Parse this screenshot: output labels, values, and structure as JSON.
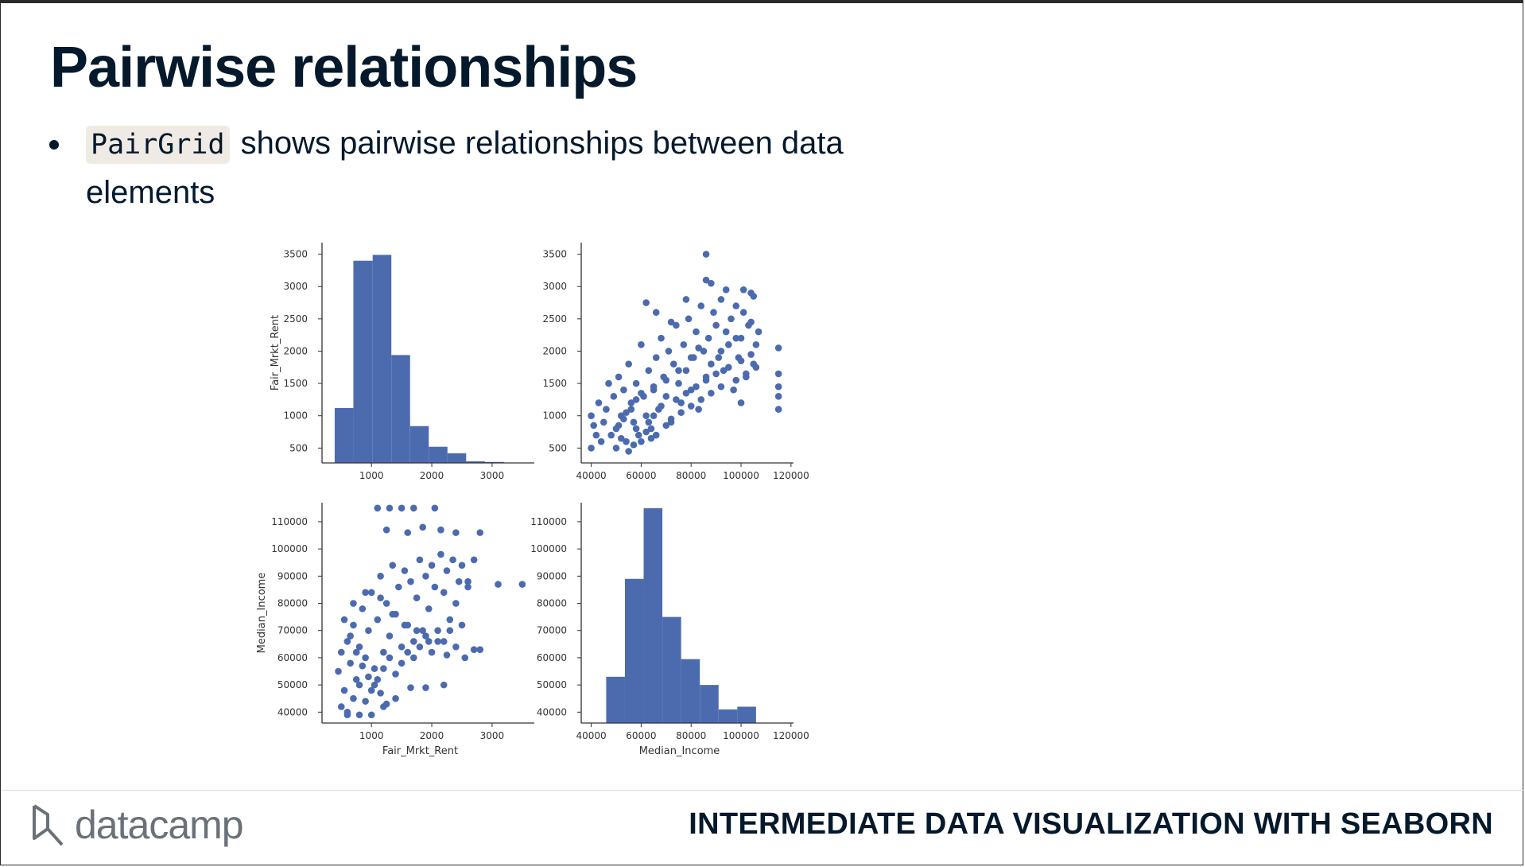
{
  "slide": {
    "title": "Pairwise relationships",
    "bullet": {
      "code": "PairGrid",
      "text": "shows pairwise relationships between data elements"
    }
  },
  "footer": {
    "logo_text": "datacamp",
    "course_title": "INTERMEDIATE DATA VISUALIZATION WITH SEABORN"
  },
  "colors": {
    "mark": "#4c6baf",
    "axis": "#333333",
    "text": "#05192d"
  },
  "chart_data": [
    {
      "type": "bar",
      "panel": "Fair_Mrkt_Rent vs Fair_Mrkt_Rent (histogram)",
      "xlabel": "",
      "ylabel": "Fair_Mrkt_Rent",
      "xlim": [
        180,
        3700
      ],
      "ylim": [
        270,
        3680
      ],
      "xticks": [
        1000,
        2000,
        3000
      ],
      "yticks": [
        500,
        1000,
        1500,
        2000,
        2500,
        3000,
        3500
      ],
      "bins": [
        {
          "x0": 390,
          "x1": 700,
          "height": 1120
        },
        {
          "x0": 700,
          "x1": 1020,
          "height": 3400
        },
        {
          "x0": 1020,
          "x1": 1330,
          "height": 3490
        },
        {
          "x0": 1330,
          "x1": 1640,
          "height": 1940
        },
        {
          "x0": 1640,
          "x1": 1950,
          "height": 840
        },
        {
          "x0": 1950,
          "x1": 2260,
          "height": 520
        },
        {
          "x0": 2260,
          "x1": 2570,
          "height": 420
        },
        {
          "x0": 2570,
          "x1": 2880,
          "height": 295
        },
        {
          "x0": 2880,
          "x1": 3200,
          "height": 285
        }
      ]
    },
    {
      "type": "scatter",
      "panel": "Fair_Mrkt_Rent vs Median_Income",
      "xlabel": "",
      "ylabel": "",
      "xlim": [
        36000,
        121000
      ],
      "ylim": [
        270,
        3680
      ],
      "xticks": [
        40000,
        60000,
        80000,
        100000,
        120000
      ],
      "yticks": [
        500,
        1000,
        1500,
        2000,
        2500,
        3000,
        3500
      ],
      "x": [
        40000,
        40000,
        41000,
        42000,
        43000,
        44000,
        45000,
        46000,
        47000,
        48000,
        49000,
        50000,
        51000,
        52000,
        53000,
        54000,
        55000,
        56000,
        57000,
        58000,
        59000,
        60000,
        61000,
        62000,
        63000,
        64000,
        65000,
        66000,
        67000,
        68000,
        69000,
        70000,
        71000,
        72000,
        73000,
        74000,
        75000,
        76000,
        77000,
        78000,
        79000,
        80000,
        81000,
        82000,
        83000,
        84000,
        85000,
        86000,
        87000,
        88000,
        89000,
        90000,
        91000,
        92000,
        93000,
        94000,
        95000,
        96000,
        97000,
        98000,
        99000,
        100000,
        101000,
        102000,
        103000,
        104000,
        105000,
        106000,
        107000,
        50000,
        52000,
        55000,
        57000,
        58000,
        60000,
        62000,
        63000,
        64000,
        65000,
        66000,
        68000,
        70000,
        72000,
        74000,
        76000,
        78000,
        80000,
        82000,
        84000,
        86000,
        88000,
        90000,
        92000,
        95000,
        98000,
        100000,
        102000,
        104000,
        106000,
        115000,
        115000,
        115000,
        115000,
        115000,
        86000,
        86000,
        101000,
        105000,
        104000,
        98000,
        92000,
        80000,
        83000,
        75000,
        70000,
        65000,
        60000,
        58000,
        56000,
        54000,
        53000,
        51000,
        62000,
        66000,
        72000,
        78000,
        88000,
        94000,
        100000
      ],
      "y": [
        1000,
        500,
        850,
        700,
        1200,
        600,
        900,
        1100,
        1500,
        700,
        1300,
        800,
        1600,
        1000,
        1400,
        600,
        1800,
        1200,
        900,
        1500,
        700,
        2100,
        1300,
        1000,
        1700,
        800,
        1400,
        1900,
        1100,
        2200,
        1600,
        1300,
        2000,
        900,
        1800,
        2400,
        1500,
        1200,
        2100,
        1700,
        2500,
        1400,
        1900,
        2300,
        1100,
        2700,
        2000,
        1600,
        2200,
        1800,
        2600,
        2400,
        1900,
        2800,
        1700,
        2300,
        2100,
        2500,
        1400,
        2700,
        1900,
        2200,
        2600,
        1600,
        2400,
        2900,
        1800,
        2100,
        2300,
        500,
        650,
        450,
        550,
        800,
        600,
        750,
        900,
        650,
        1000,
        700,
        1150,
        850,
        950,
        1250,
        1050,
        1350,
        1150,
        1450,
        1250,
        1550,
        1350,
        1650,
        1450,
        1750,
        1550,
        1850,
        1650,
        1950,
        1750,
        2050,
        1650,
        1300,
        1100,
        1450,
        3500,
        3100,
        2950,
        2850,
        2450,
        2200,
        2000,
        1900,
        2050,
        1700,
        1550,
        1450,
        1350,
        1250,
        1100,
        1050,
        950,
        850,
        2750,
        2600,
        2450,
        2800,
        3050,
        2950,
        1200
      ]
    },
    {
      "type": "scatter",
      "panel": "Median_Income vs Fair_Mrkt_Rent",
      "xlabel": "Fair_Mrkt_Rent",
      "ylabel": "Median_Income",
      "xlim": [
        180,
        3700
      ],
      "ylim": [
        36000,
        117000
      ],
      "xticks": [
        1000,
        2000,
        3000
      ],
      "yticks": [
        40000,
        50000,
        60000,
        70000,
        80000,
        90000,
        100000,
        110000
      ],
      "x": [
        450,
        500,
        550,
        600,
        650,
        700,
        750,
        800,
        850,
        900,
        950,
        1000,
        1050,
        1100,
        1150,
        1200,
        1250,
        1300,
        1350,
        1400,
        1450,
        1500,
        1550,
        1600,
        1650,
        1700,
        1750,
        1800,
        1850,
        1900,
        1950,
        2000,
        2050,
        2100,
        2150,
        2200,
        2250,
        2300,
        2350,
        2400,
        2450,
        2500,
        2600,
        2700,
        500,
        600,
        700,
        800,
        900,
        1000,
        1100,
        1200,
        1300,
        1400,
        1500,
        1600,
        1700,
        1800,
        1900,
        2000,
        2100,
        2200,
        2300,
        2400,
        2500,
        2600,
        2700,
        2800,
        3100,
        3500,
        1100,
        1300,
        1500,
        1700,
        2050,
        1250,
        1600,
        1850,
        2150,
        2400,
        600,
        800,
        1000,
        1200,
        1400,
        1650,
        1900,
        2200,
        2800,
        550,
        700,
        900,
        1150,
        1350,
        1550,
        1750,
        1950,
        2250,
        2550,
        650,
        750,
        850,
        950,
        1050,
        1150,
        1250
      ],
      "y": [
        55000,
        62000,
        48000,
        66000,
        58000,
        72000,
        52000,
        64000,
        78000,
        60000,
        70000,
        84000,
        56000,
        74000,
        90000,
        62000,
        80000,
        68000,
        94000,
        76000,
        86000,
        64000,
        92000,
        72000,
        88000,
        60000,
        82000,
        96000,
        70000,
        90000,
        78000,
        94000,
        86000,
        66000,
        98000,
        84000,
        92000,
        70000,
        96000,
        80000,
        88000,
        94000,
        86000,
        63000,
        42000,
        40000,
        45000,
        50000,
        44000,
        48000,
        52000,
        56000,
        60000,
        54000,
        58000,
        62000,
        66000,
        64000,
        68000,
        62000,
        70000,
        66000,
        74000,
        64000,
        72000,
        88000,
        96000,
        106000,
        87000,
        87000,
        115000,
        115000,
        115000,
        115000,
        115000,
        107000,
        106000,
        108000,
        107000,
        106000,
        39000,
        39000,
        39000,
        42000,
        45000,
        49000,
        49000,
        50000,
        63000,
        74000,
        80000,
        84000,
        82000,
        76000,
        72000,
        70000,
        66000,
        61000,
        60000,
        68000,
        62000,
        57000,
        53000,
        50000,
        47000,
        43000
      ]
    },
    {
      "type": "bar",
      "panel": "Median_Income vs Median_Income (histogram)",
      "xlabel": "Median_Income",
      "ylabel": "",
      "xlim": [
        36000,
        121000
      ],
      "ylim": [
        36000,
        117000
      ],
      "xticks": [
        40000,
        60000,
        80000,
        100000,
        120000
      ],
      "yticks": [
        40000,
        50000,
        60000,
        70000,
        80000,
        90000,
        100000,
        110000
      ],
      "bins": [
        {
          "x0": 38500,
          "x1": 46000,
          "height": 36000
        },
        {
          "x0": 46000,
          "x1": 53500,
          "height": 53000
        },
        {
          "x0": 53500,
          "x1": 61000,
          "height": 89000
        },
        {
          "x0": 61000,
          "x1": 68500,
          "height": 115000
        },
        {
          "x0": 68500,
          "x1": 76000,
          "height": 75000
        },
        {
          "x0": 76000,
          "x1": 83500,
          "height": 59500
        },
        {
          "x0": 83500,
          "x1": 91000,
          "height": 50000
        },
        {
          "x0": 91000,
          "x1": 98500,
          "height": 41000
        },
        {
          "x0": 98500,
          "x1": 106000,
          "height": 42000
        }
      ]
    }
  ]
}
